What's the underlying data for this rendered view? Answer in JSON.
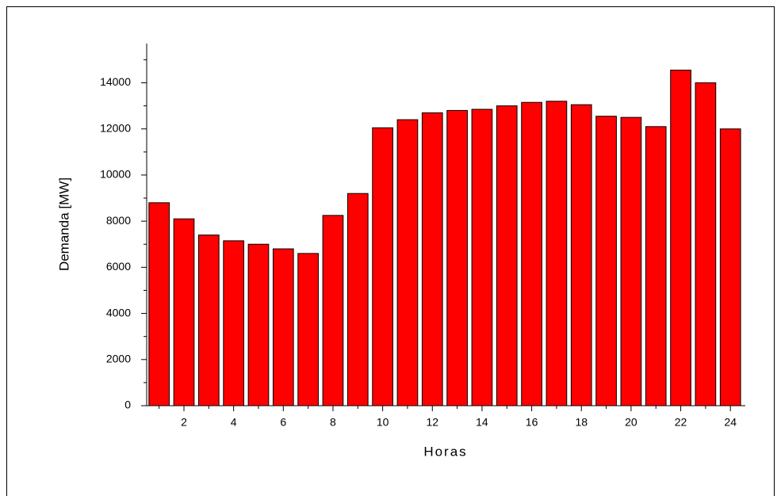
{
  "chart_data": {
    "type": "bar",
    "x_label": "Horas",
    "y_label": "Demanda [MW]",
    "x": [
      1,
      2,
      3,
      4,
      5,
      6,
      7,
      8,
      9,
      10,
      11,
      12,
      13,
      14,
      15,
      16,
      17,
      18,
      19,
      20,
      21,
      22,
      23,
      24
    ],
    "values": [
      8800,
      8100,
      7400,
      7150,
      7000,
      6800,
      6600,
      8250,
      9200,
      12050,
      12400,
      12700,
      12800,
      12850,
      13000,
      13150,
      13200,
      13050,
      12550,
      12500,
      12100,
      14550,
      14000,
      12000
    ],
    "color": "#ff0000",
    "xlim": [
      0.5,
      24.6
    ],
    "xticks": [
      2,
      4,
      6,
      8,
      10,
      12,
      14,
      16,
      18,
      20,
      22,
      24
    ],
    "xminorticks": [
      1,
      3,
      5,
      7,
      9,
      11,
      13,
      15,
      17,
      19,
      21,
      23
    ],
    "ylim": [
      0,
      15700
    ],
    "yticks": [
      0,
      2000,
      4000,
      6000,
      8000,
      10000,
      12000,
      14000
    ],
    "yminorticks": [
      1000,
      3000,
      5000,
      7000,
      9000,
      11000,
      13000,
      15000
    ]
  }
}
